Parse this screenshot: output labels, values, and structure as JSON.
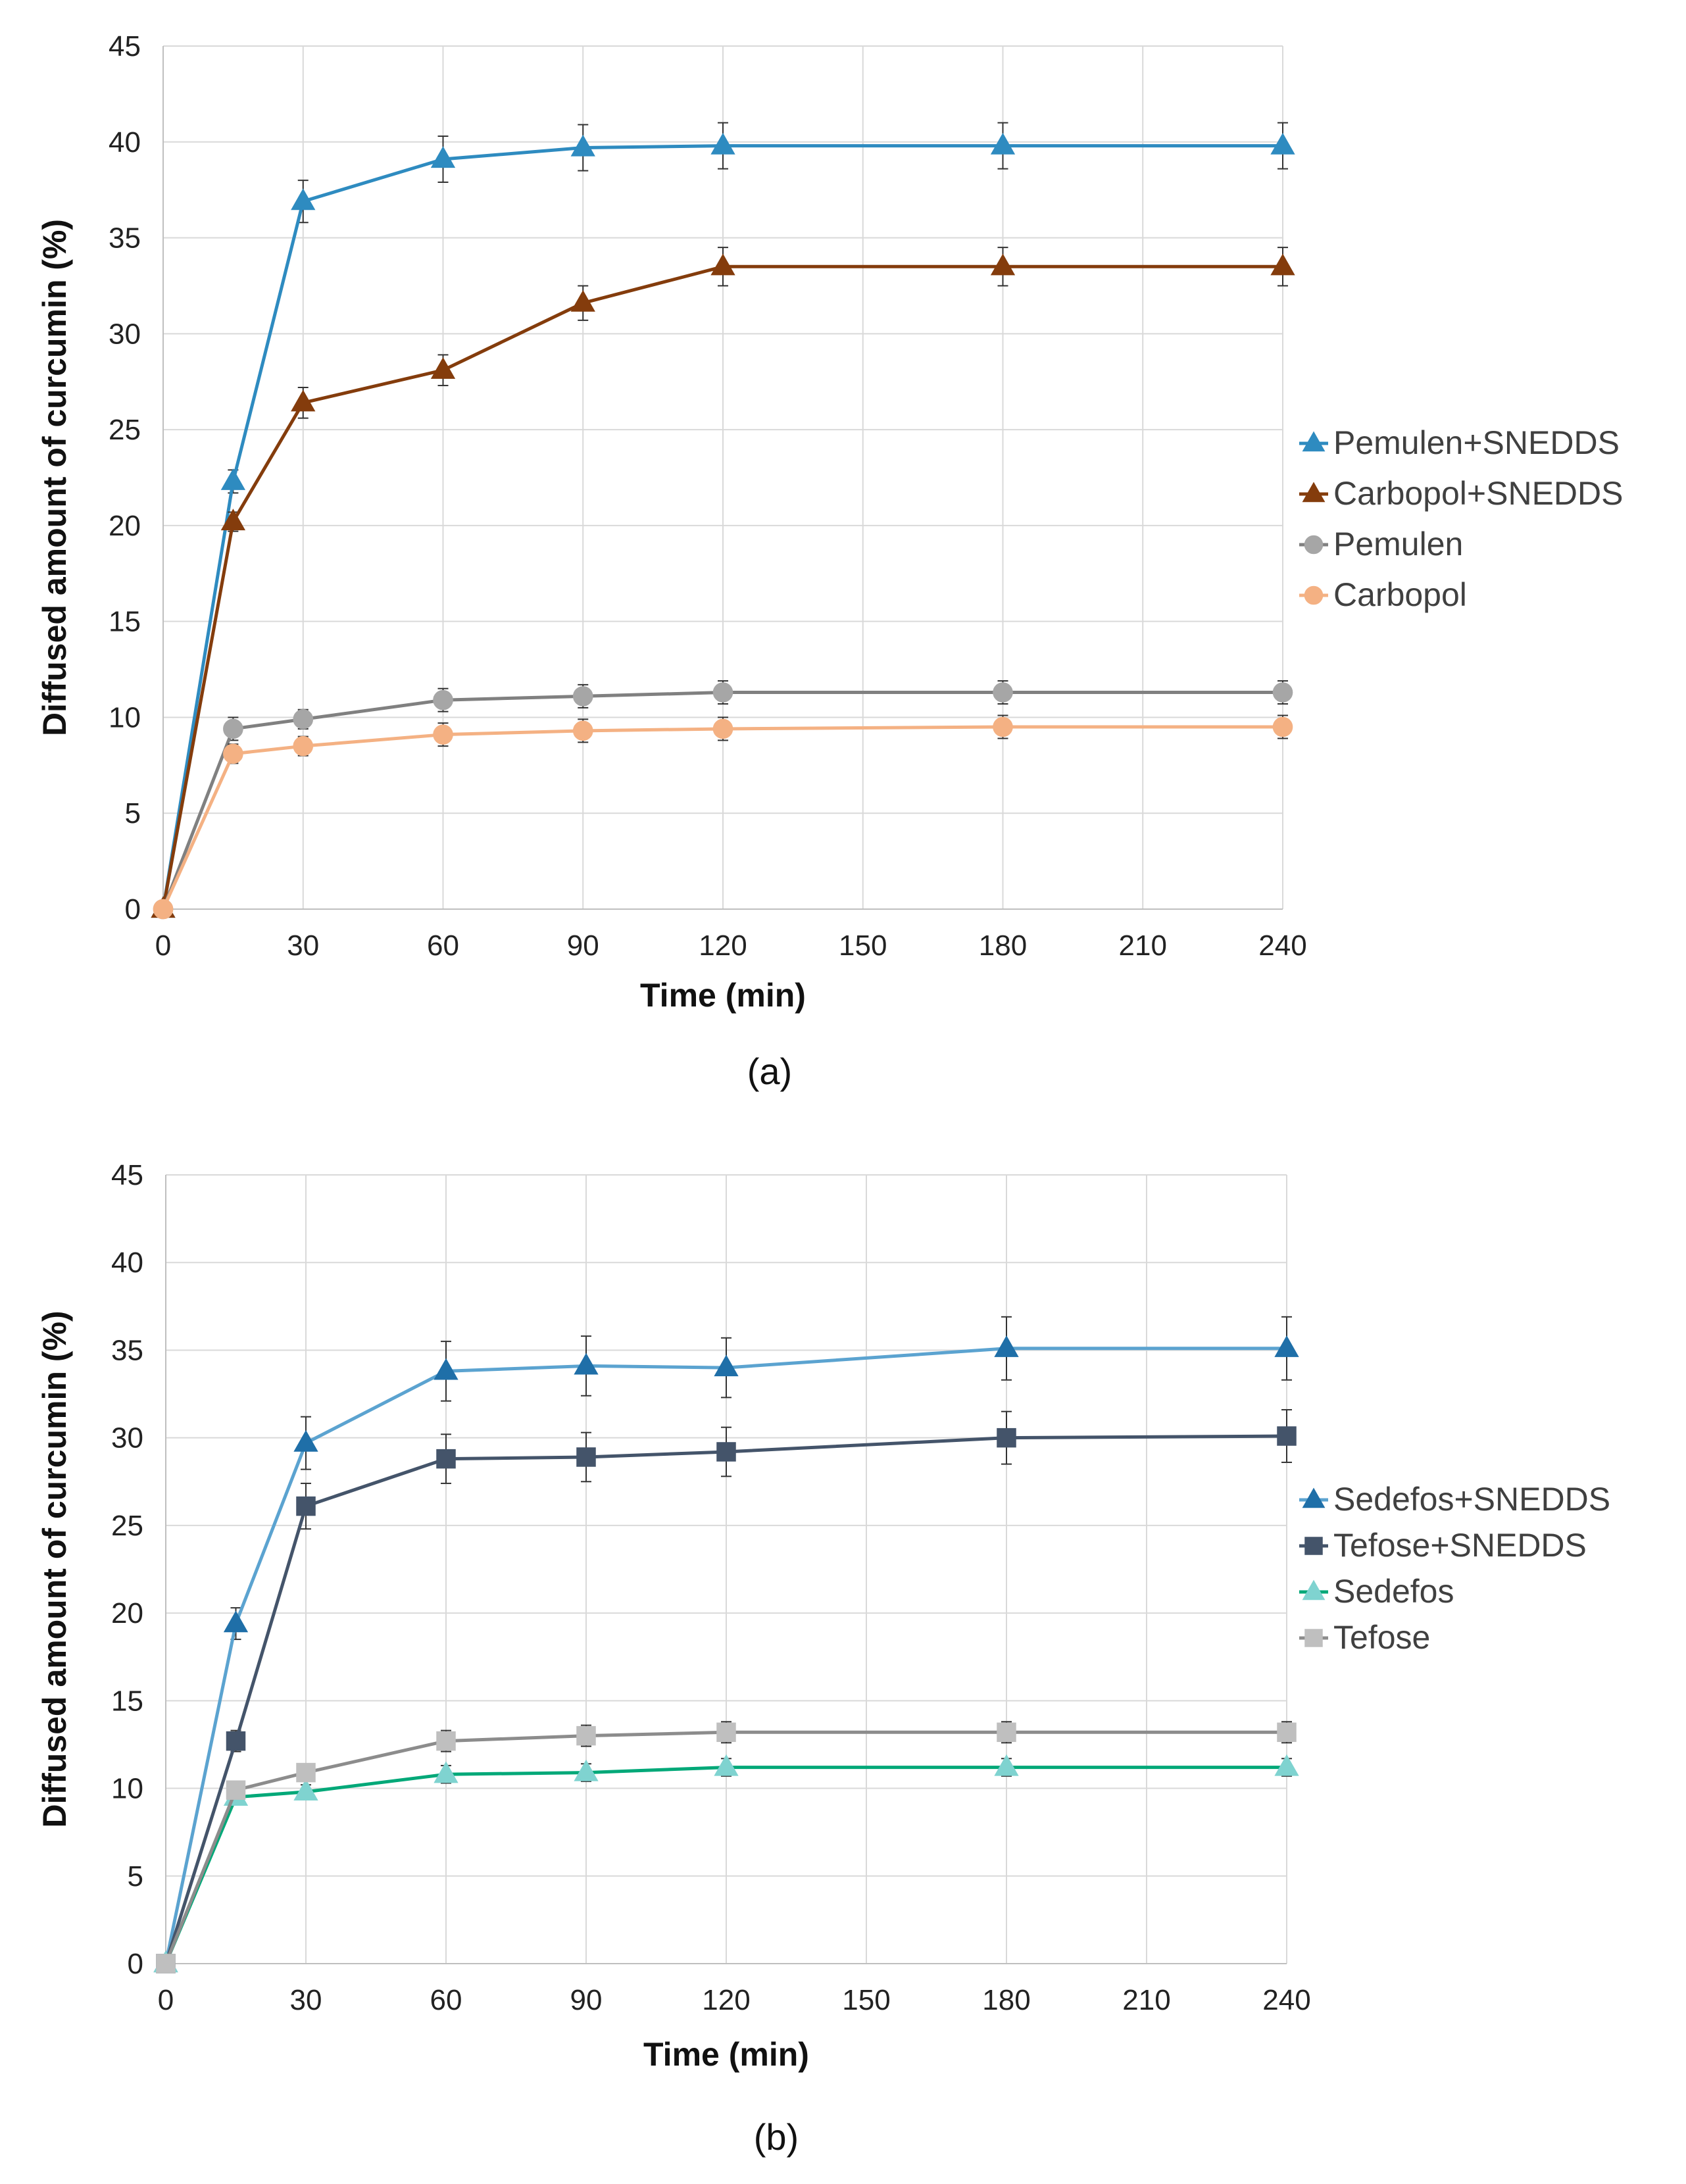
{
  "chart_data": [
    {
      "type": "line",
      "panel_label": "(a)",
      "xlabel": "Time (min)",
      "ylabel": "Diffused amount of curcumin (%)",
      "xlim": [
        0,
        240
      ],
      "ylim": [
        0,
        45
      ],
      "x_ticks": [
        0,
        30,
        60,
        90,
        120,
        150,
        180,
        210,
        240
      ],
      "y_ticks": [
        0,
        5,
        10,
        15,
        20,
        25,
        30,
        35,
        40,
        45
      ],
      "grid": true,
      "legend_position": "right",
      "x": [
        0,
        15,
        30,
        60,
        90,
        120,
        180,
        240
      ],
      "series": [
        {
          "name": "Pemulen+SNEDDS",
          "marker": "triangle",
          "color": "#2e8bc0",
          "marker_color": "#2e8bc0",
          "values": [
            0,
            22.3,
            36.9,
            39.1,
            39.7,
            39.8,
            39.8,
            39.8
          ],
          "errors": [
            0,
            0.6,
            1.1,
            1.2,
            1.2,
            1.2,
            1.2,
            1.2
          ]
        },
        {
          "name": "Carbopol+SNEDDS",
          "marker": "triangle",
          "color": "#843c0c",
          "marker_color": "#843c0c",
          "values": [
            0,
            20.2,
            26.4,
            28.1,
            31.6,
            33.5,
            33.5,
            33.5
          ],
          "errors": [
            0,
            0.5,
            0.8,
            0.8,
            0.9,
            1.0,
            1.0,
            1.0
          ]
        },
        {
          "name": "Pemulen",
          "marker": "circle",
          "color": "#808080",
          "marker_color": "#a6a6a6",
          "values": [
            0,
            9.4,
            9.9,
            10.9,
            11.1,
            11.3,
            11.3,
            11.3
          ],
          "errors": [
            0,
            0.6,
            0.5,
            0.6,
            0.6,
            0.6,
            0.6,
            0.6
          ]
        },
        {
          "name": "Carbopol",
          "marker": "circle",
          "color": "#f4b183",
          "marker_color": "#f4b183",
          "values": [
            0,
            8.1,
            8.5,
            9.1,
            9.3,
            9.4,
            9.5,
            9.5
          ],
          "errors": [
            0,
            0.5,
            0.5,
            0.6,
            0.6,
            0.6,
            0.6,
            0.6
          ]
        }
      ]
    },
    {
      "type": "line",
      "panel_label": "(b)",
      "xlabel": "Time (min)",
      "ylabel": "Diffused amount of curcumin (%)",
      "xlim": [
        0,
        240
      ],
      "ylim": [
        0,
        45
      ],
      "x_ticks": [
        0,
        30,
        60,
        90,
        120,
        150,
        180,
        210,
        240
      ],
      "y_ticks": [
        0,
        5,
        10,
        15,
        20,
        25,
        30,
        35,
        40,
        45
      ],
      "grid": true,
      "legend_position": "right",
      "x": [
        0,
        15,
        30,
        60,
        90,
        120,
        180,
        240
      ],
      "series": [
        {
          "name": "Sedefos+SNEDDS",
          "marker": "triangle",
          "color": "#5ba3d0",
          "marker_color": "#1f6fa8",
          "values": [
            0,
            19.4,
            29.7,
            33.8,
            34.1,
            34.0,
            35.1,
            35.1
          ],
          "errors": [
            0,
            0.9,
            1.5,
            1.7,
            1.7,
            1.7,
            1.8,
            1.8
          ]
        },
        {
          "name": "Tefose+SNEDDS",
          "marker": "square",
          "color": "#44546a",
          "marker_color": "#44546a",
          "values": [
            0,
            12.7,
            26.1,
            28.8,
            28.9,
            29.2,
            30.0,
            30.1
          ],
          "errors": [
            0,
            0.6,
            1.3,
            1.4,
            1.4,
            1.4,
            1.5,
            1.5
          ]
        },
        {
          "name": "Sedefos",
          "marker": "triangle",
          "color": "#00a878",
          "marker_color": "#7fd3d0",
          "values": [
            0,
            9.5,
            9.8,
            10.8,
            10.9,
            11.2,
            11.2,
            11.2
          ],
          "errors": [
            0,
            0.4,
            0.4,
            0.5,
            0.5,
            0.5,
            0.5,
            0.5
          ]
        },
        {
          "name": "Tefose",
          "marker": "square",
          "color": "#8c8c8c",
          "marker_color": "#bfbfbf",
          "values": [
            0,
            9.9,
            10.9,
            12.7,
            13.0,
            13.2,
            13.2,
            13.2
          ],
          "errors": [
            0,
            0.5,
            0.5,
            0.6,
            0.6,
            0.6,
            0.6,
            0.6
          ]
        }
      ]
    }
  ]
}
